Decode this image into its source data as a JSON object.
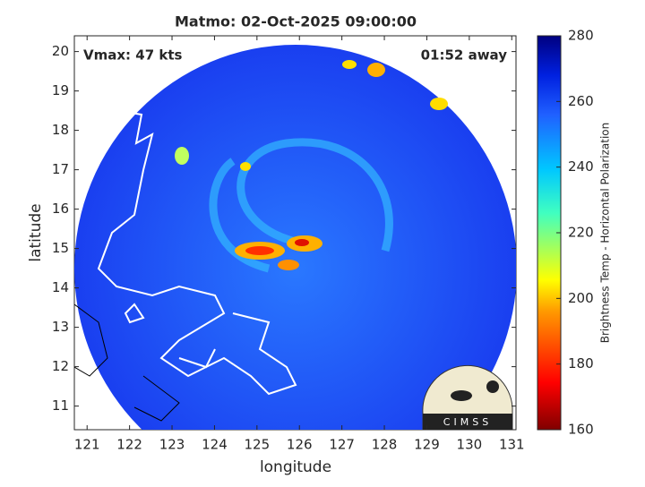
{
  "plot": {
    "title": "Matmo: 02-Oct-2025 09:00:00",
    "annotations": [
      "Vmax: 47 kts",
      "01:52 away"
    ],
    "xlabel": "longitude",
    "ylabel": "latitude",
    "xlim": [
      120.7,
      131.1
    ],
    "ylim": [
      10.4,
      20.4
    ],
    "xticks": [
      121,
      122,
      123,
      124,
      125,
      126,
      127,
      128,
      129,
      130,
      131
    ],
    "yticks": [
      11,
      12,
      13,
      14,
      15,
      16,
      17,
      18,
      19,
      20
    ]
  },
  "colorbar": {
    "label": "Brightness Temp - Horizontal Polarization",
    "lim": [
      160,
      280
    ],
    "ticks": [
      160,
      180,
      200,
      220,
      240,
      260,
      280
    ]
  },
  "logo": "CIMSS"
}
